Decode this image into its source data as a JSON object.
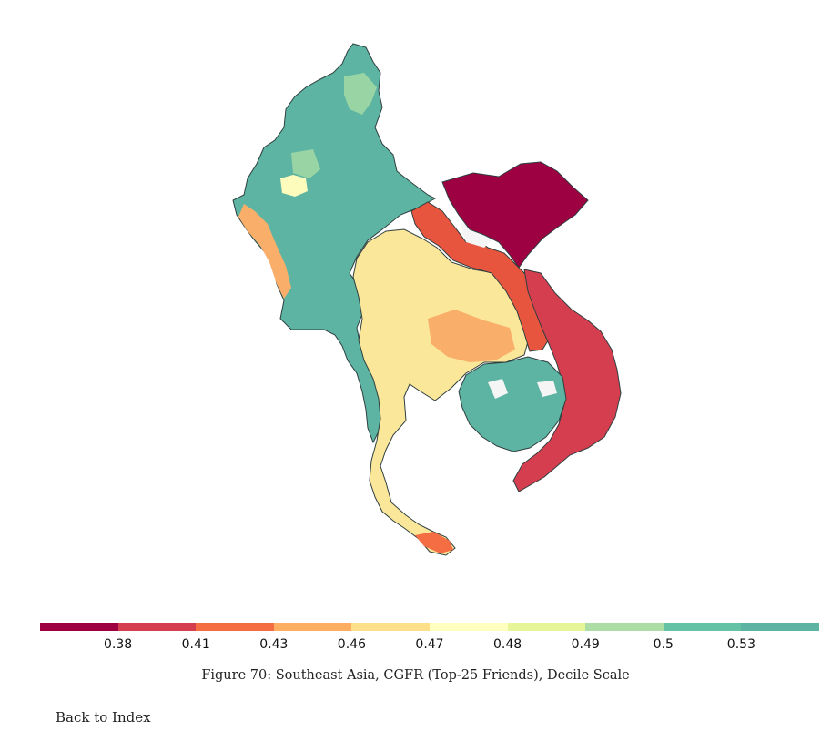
{
  "legend": {
    "colors": [
      "#9e0142",
      "#d53e4f",
      "#f46d43",
      "#fdae61",
      "#fee08b",
      "#ffffbf",
      "#e6f598",
      "#abdda4",
      "#66c2a5",
      "#5db4a3"
    ],
    "tick_labels": [
      "0.38",
      "0.41",
      "0.43",
      "0.46",
      "0.47",
      "0.48",
      "0.49",
      "0.5",
      "0.53"
    ]
  },
  "caption": "Figure 70: Southeast Asia, CGFR (Top-25 Friends), Decile Scale",
  "back_link": "Back to Index",
  "map": {
    "region_colors": {
      "myanmar": "#5db4a3",
      "myanmar_north": "#99d5a4",
      "myanmar_coast": "#f9ae6a",
      "thailand": "#fbe79a",
      "laos": "#e8553f",
      "vietnam_north": "#9e0142",
      "vietnam_south": "#d53e4f",
      "cambodia": "#5db4a3",
      "missing": "#f5f5f5"
    }
  }
}
